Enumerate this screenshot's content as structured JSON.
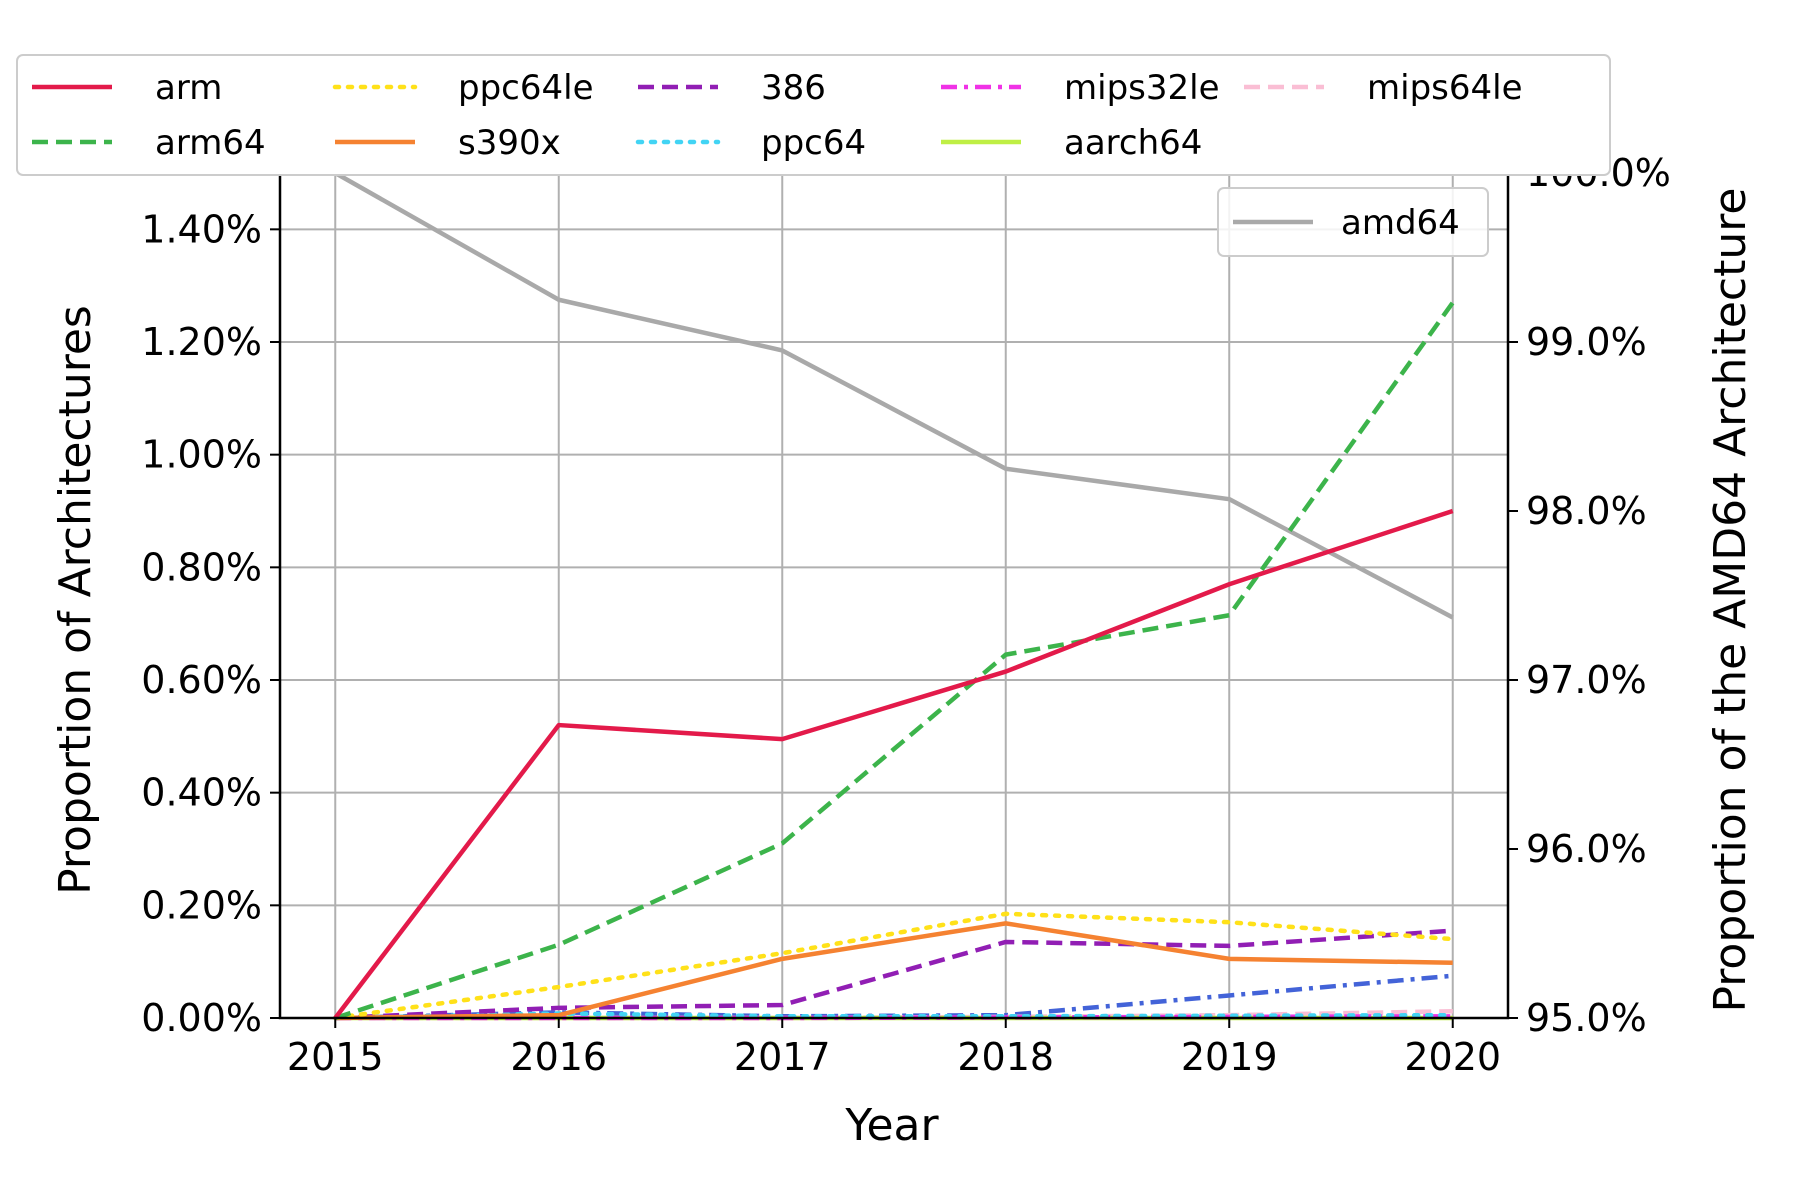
{
  "chart_data": {
    "type": "line",
    "x": [
      2015,
      2016,
      2017,
      2018,
      2019,
      2020
    ],
    "xlabel": "Year",
    "ylabel": "Proportion of Architectures",
    "y2label": "Proportion of the AMD64 Architecture",
    "ylim": [
      0,
      1.5
    ],
    "y2lim": [
      95.0,
      100.0
    ],
    "grid": true,
    "yticks": [
      "0.00%",
      "0.20%",
      "0.40%",
      "0.60%",
      "0.80%",
      "1.00%",
      "1.20%",
      "1.40%"
    ],
    "ytick_values": [
      0,
      0.2,
      0.4,
      0.6,
      0.8,
      1.0,
      1.2,
      1.4
    ],
    "y2ticks": [
      "95.0%",
      "96.0%",
      "97.0%",
      "98.0%",
      "99.0%",
      "100.0%"
    ],
    "y2tick_values": [
      95,
      96,
      97,
      98,
      99,
      100
    ],
    "legend_placement": "top",
    "series": [
      {
        "name": "arm",
        "color": "#e31a4a",
        "dash": "solid",
        "values": [
          0,
          0.52,
          0.495,
          0.615,
          0.77,
          0.9
        ]
      },
      {
        "name": "arm64",
        "color": "#3cb44b",
        "dash": "dashed",
        "values": [
          0,
          0.13,
          0.31,
          0.645,
          0.715,
          1.27
        ]
      },
      {
        "name": "ppc64le",
        "color": "#ffe119",
        "dash": "dotted",
        "values": [
          0,
          0.055,
          0.115,
          0.185,
          0.17,
          0.14
        ]
      },
      {
        "name": "s390x",
        "color": "#f58231",
        "dash": "solid",
        "values": [
          0,
          0.005,
          0.105,
          0.168,
          0.105,
          0.098
        ]
      },
      {
        "name": "386",
        "color": "#911eb4",
        "dash": "dashed",
        "values": [
          0,
          0.018,
          0.023,
          0.135,
          0.128,
          0.155
        ]
      },
      {
        "name": "ppc64",
        "color": "#42d4f4",
        "dash": "dotted",
        "values": [
          0,
          0.008,
          0.003,
          0.003,
          0.004,
          0.005
        ]
      },
      {
        "name": "mips32le",
        "color": "#f032e6",
        "dash": "dashdot",
        "values": [
          0,
          0.0,
          0.0,
          0.001,
          0.002,
          0.003
        ]
      },
      {
        "name": "aarch64",
        "color": "#bfef45",
        "dash": "solid",
        "values": [
          0,
          0.0,
          0.0,
          0.0,
          0.0,
          0.0
        ]
      },
      {
        "name": "mips64le",
        "color": "#fabed4",
        "dash": "dashed",
        "values": [
          0,
          0.0,
          0.0,
          0.002,
          0.005,
          0.012
        ]
      },
      {
        "color": "#4363d8",
        "dash": "dashdot",
        "values": [
          0,
          0.01,
          0.003,
          0.005,
          0.04,
          0.075
        ]
      }
    ],
    "secondary_series": [
      {
        "name": "amd64",
        "color": "#a9a9a9",
        "dash": "solid",
        "values": [
          100.0,
          99.25,
          98.95,
          98.25,
          98.07,
          97.37
        ]
      }
    ]
  }
}
